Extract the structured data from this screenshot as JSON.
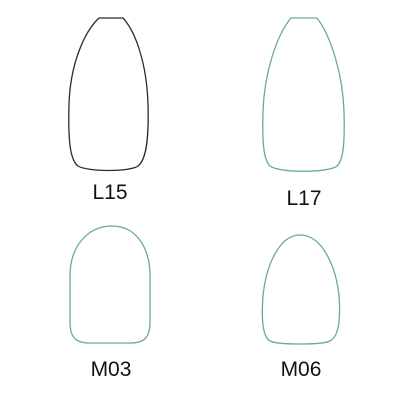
{
  "colors": {
    "background": "#ffffff",
    "outline_black": "#2b2b2b",
    "outline_green": "#6aaa96",
    "label_text": "#111111"
  },
  "shapes": [
    {
      "label": "L15",
      "outline_color": "#2b2b2b"
    },
    {
      "label": "L17",
      "outline_color": "#6aaa96"
    },
    {
      "label": "M03",
      "outline_color": "#6aaa96"
    },
    {
      "label": "M06",
      "outline_color": "#6aaa96"
    }
  ]
}
